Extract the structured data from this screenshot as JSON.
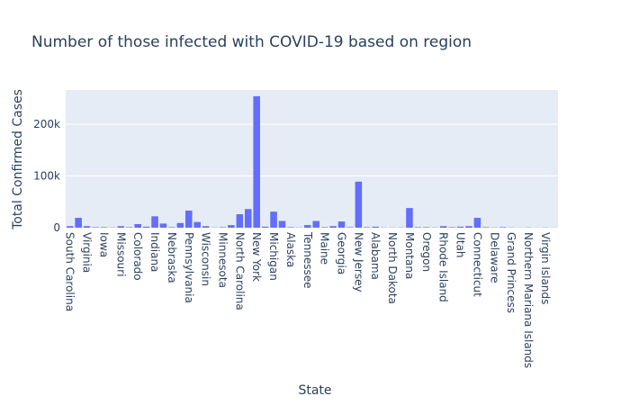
{
  "chart_data": {
    "type": "bar",
    "title": "Number of those infected with COVID-19 based on region",
    "x_label": "State",
    "y_label": "Total Confirmed Cases",
    "color": "#636efa",
    "grid": true,
    "categories": [
      "South Carolina",
      null,
      "Virginia",
      null,
      "Iowa",
      null,
      "Missouri",
      null,
      "Colorado",
      null,
      "Indiana",
      null,
      "Nebraska",
      null,
      "Pennsylvania",
      null,
      "Wisconsin",
      null,
      "Minnesota",
      null,
      "North Carolina",
      null,
      "New York",
      null,
      "Michigan",
      null,
      "Alaska",
      null,
      "Tennessee",
      null,
      "Maine",
      null,
      "Georgia",
      null,
      "New Jersey",
      null,
      "Alabama",
      null,
      "North Dakota",
      null,
      "Montana",
      null,
      "Oregon",
      null,
      "Rhode Island",
      null,
      "Utah",
      null,
      "Connecticut",
      null,
      "Delaware",
      null,
      "Grand Princess",
      null,
      "Northern Mariana Islands",
      null,
      "Virgin Islands",
      null
    ],
    "values": [
      3000,
      19000,
      3000,
      1000,
      1000,
      500,
      3000,
      1000,
      7000,
      2000,
      22000,
      8000,
      1000,
      9000,
      33000,
      11000,
      3000,
      500,
      1000,
      5000,
      26000,
      36000,
      254000,
      2000,
      31000,
      13000,
      1000,
      500,
      5000,
      13000,
      1000,
      3000,
      12000,
      1000,
      89000,
      1000,
      2000,
      500,
      500,
      500,
      38000,
      1000,
      1000,
      500,
      3000,
      1000,
      2000,
      3000,
      19000,
      1000,
      500,
      1000,
      500,
      300,
      500,
      300,
      500,
      300
    ],
    "ylim": [
      0,
      266000
    ],
    "yticks": [
      {
        "value": 0,
        "label": "0"
      },
      {
        "value": 100000,
        "label": "100k"
      },
      {
        "value": 200000,
        "label": "200k"
      }
    ]
  }
}
